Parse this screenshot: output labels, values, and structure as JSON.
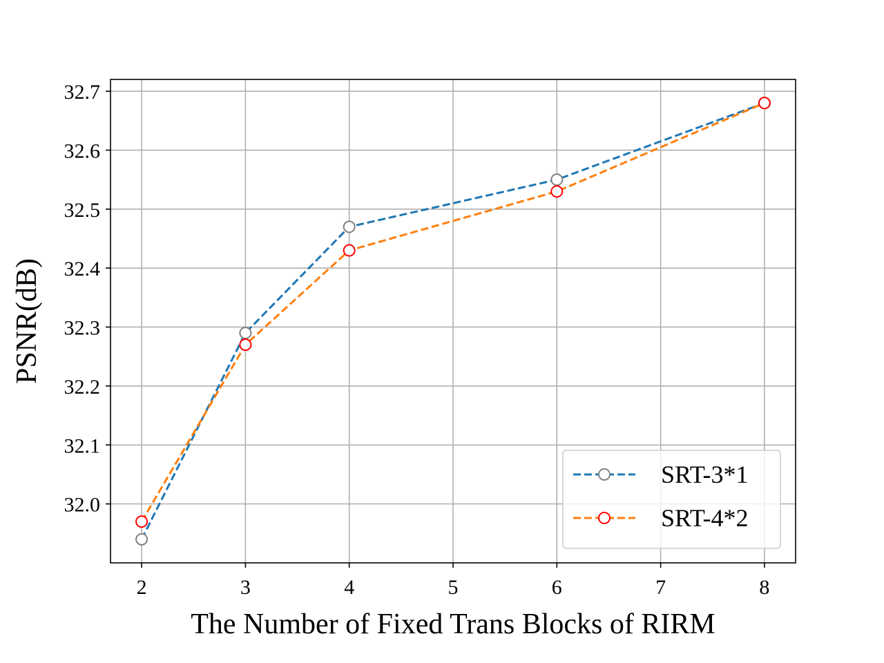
{
  "chart_data": {
    "type": "line",
    "x": [
      2,
      3,
      4,
      6,
      8
    ],
    "series": [
      {
        "name": "SRT-3*1",
        "values": [
          31.94,
          32.29,
          32.47,
          32.55,
          32.68
        ],
        "line_color": "#1f77b4",
        "marker_edge": "#808080"
      },
      {
        "name": "SRT-4*2",
        "values": [
          31.97,
          32.27,
          32.43,
          32.53,
          32.68
        ],
        "line_color": "#ff7f0e",
        "marker_edge": "#ff0000"
      }
    ],
    "xlabel": "The Number of Fixed Trans Blocks of RIRM",
    "ylabel": "PSNR(dB)",
    "xlim": [
      1.7,
      8.3
    ],
    "ylim": [
      31.9,
      32.72
    ],
    "xticks": [
      2,
      3,
      4,
      5,
      6,
      7,
      8
    ],
    "xtick_labels": [
      "2",
      "3",
      "4",
      "5",
      "6",
      "7",
      "8"
    ],
    "yticks": [
      32.0,
      32.1,
      32.2,
      32.3,
      32.4,
      32.5,
      32.6,
      32.7
    ],
    "ytick_labels": [
      "32.0",
      "32.1",
      "32.2",
      "32.3",
      "32.4",
      "32.5",
      "32.6",
      "32.7"
    ],
    "grid": true,
    "legend_position": "lower-right",
    "line_style": "dashed",
    "marker": "open-circle"
  }
}
